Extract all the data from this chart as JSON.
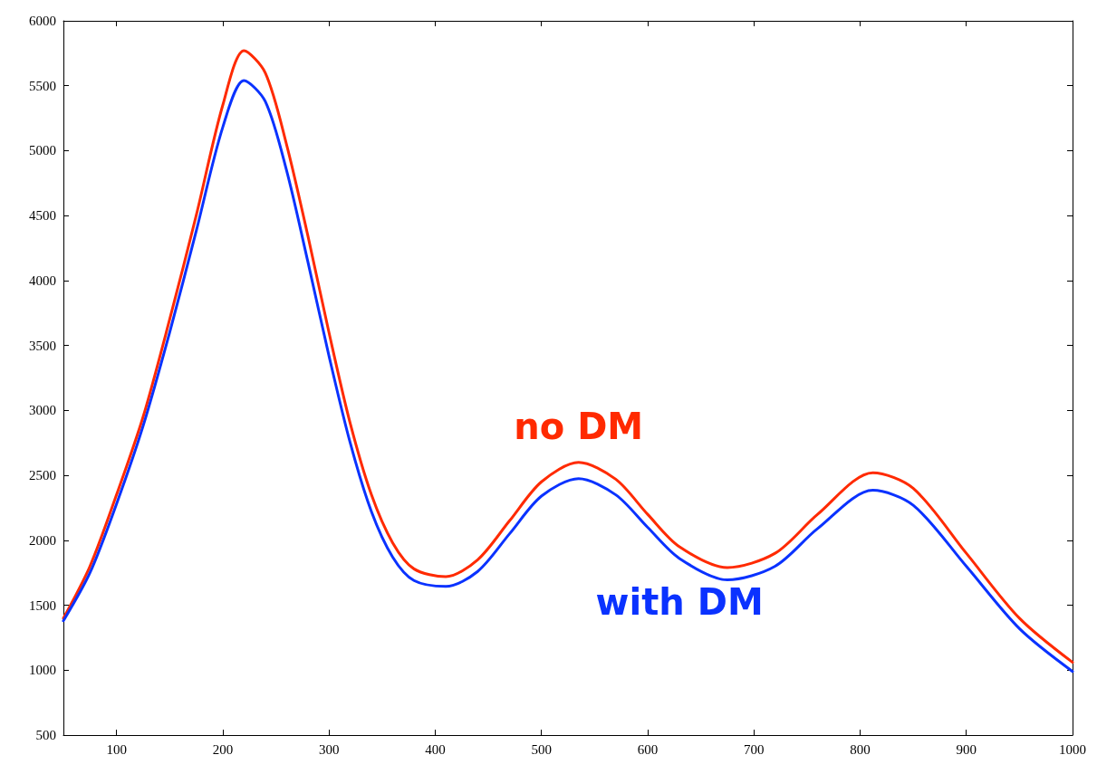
{
  "chart_data": {
    "type": "line",
    "xlim": [
      50,
      1000
    ],
    "ylim": [
      500,
      6000
    ],
    "xticks": [
      100,
      200,
      300,
      400,
      500,
      600,
      700,
      800,
      900,
      1000
    ],
    "yticks": [
      500,
      1000,
      1500,
      2000,
      2500,
      3000,
      3500,
      4000,
      4500,
      5000,
      5500,
      6000
    ],
    "grid": false,
    "marker": "none",
    "line_style": "solid",
    "x": [
      50,
      75,
      100,
      125,
      150,
      175,
      200,
      220,
      240,
      260,
      280,
      300,
      320,
      340,
      360,
      380,
      410,
      440,
      470,
      500,
      535,
      570,
      600,
      630,
      675,
      720,
      760,
      812,
      850,
      900,
      950,
      1000
    ],
    "series": [
      {
        "name": "no DM",
        "color": "#ff2a00",
        "values": [
          1400,
          1800,
          2350,
          2950,
          3700,
          4500,
          5350,
          5770,
          5600,
          5050,
          4350,
          3600,
          2900,
          2350,
          1980,
          1780,
          1720,
          1850,
          2150,
          2450,
          2600,
          2470,
          2200,
          1950,
          1790,
          1900,
          2200,
          2520,
          2400,
          1900,
          1400,
          1060
        ]
      },
      {
        "name": "with DM",
        "color": "#0a32ff",
        "values": [
          1380,
          1750,
          2280,
          2880,
          3600,
          4380,
          5180,
          5540,
          5380,
          4850,
          4150,
          3420,
          2750,
          2220,
          1870,
          1690,
          1645,
          1760,
          2050,
          2340,
          2475,
          2350,
          2100,
          1860,
          1695,
          1800,
          2090,
          2385,
          2270,
          1800,
          1320,
          990
        ]
      }
    ]
  }
}
